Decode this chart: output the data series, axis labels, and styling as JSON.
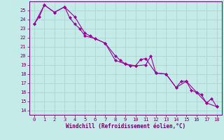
{
  "title": "",
  "xlabel": "Windchill (Refroidissement éolien,°C)",
  "ylabel": "",
  "bg_color": "#c5ebe9",
  "grid_color": "#b0d8d6",
  "line_color": "#990099",
  "marker_color": "#990099",
  "xlim": [
    -0.5,
    18.5
  ],
  "ylim": [
    13.5,
    26.0
  ],
  "xticks": [
    0,
    1,
    2,
    3,
    4,
    5,
    6,
    7,
    8,
    9,
    10,
    11,
    12,
    13,
    14,
    15,
    16,
    17,
    18
  ],
  "yticks": [
    14,
    15,
    16,
    17,
    18,
    19,
    20,
    21,
    22,
    23,
    24,
    25
  ],
  "series1_x": [
    0,
    1,
    2,
    3,
    4,
    5,
    5.5,
    6,
    7,
    8,
    9,
    9.5,
    10,
    11,
    11.5,
    12,
    13,
    14,
    14.5,
    15,
    16,
    17,
    17.5,
    18
  ],
  "series1_y": [
    23.5,
    25.6,
    24.8,
    25.4,
    24.3,
    22.5,
    22.2,
    21.9,
    21.4,
    19.5,
    19.1,
    18.9,
    18.9,
    19.0,
    20.0,
    18.1,
    18.0,
    16.5,
    17.2,
    17.2,
    16.0,
    14.8,
    15.3,
    14.4
  ],
  "series2_x": [
    0,
    0.5,
    1,
    2,
    3,
    3.5,
    4,
    4.5,
    5,
    6,
    7,
    8,
    8.5,
    9,
    10,
    10.5,
    11,
    12,
    13,
    14,
    15,
    15.5,
    16,
    16.5,
    17,
    18
  ],
  "series2_y": [
    23.5,
    24.3,
    25.6,
    24.8,
    25.4,
    24.2,
    23.5,
    23.0,
    22.2,
    21.9,
    21.4,
    20.0,
    19.5,
    19.1,
    18.9,
    19.6,
    19.7,
    18.1,
    18.0,
    16.5,
    17.2,
    16.2,
    16.0,
    15.7,
    14.8,
    14.4
  ]
}
